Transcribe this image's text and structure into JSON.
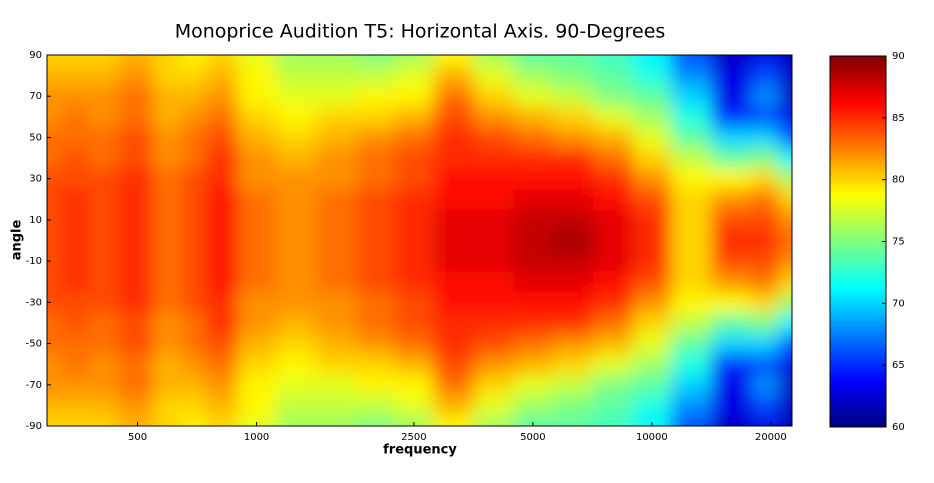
{
  "chart_data": {
    "type": "heatmap",
    "title": "Monoprice Audition T5: Horizontal Axis. 90-Degrees",
    "x_label": "frequency",
    "y_label": "angle",
    "x_scale": "log",
    "xlim": [
      295,
      22620
    ],
    "xticks": [
      500,
      1000,
      2500,
      5000,
      10000,
      20000
    ],
    "ylim": [
      -90,
      90
    ],
    "yticks": [
      -90,
      -70,
      -50,
      -30,
      -10,
      10,
      30,
      50,
      70,
      90
    ],
    "clim": [
      60,
      90
    ],
    "cticks": [
      60,
      65,
      70,
      75,
      80,
      85,
      90
    ],
    "colormap": "jet",
    "x": [
      300,
      350,
      400,
      500,
      600,
      700,
      800,
      1000,
      1250,
      1600,
      2000,
      2500,
      3150,
      4000,
      5000,
      6300,
      8000,
      10000,
      12500,
      16000,
      20000,
      22000
    ],
    "y": [
      90,
      80,
      70,
      60,
      50,
      40,
      30,
      20,
      10,
      0,
      -10,
      -20,
      -30,
      -40,
      -50,
      -60,
      -70,
      -80,
      -90
    ],
    "z": [
      [
        80,
        80,
        80,
        81,
        80,
        79,
        80,
        78,
        76,
        76,
        75,
        76,
        79,
        76,
        74,
        74,
        73,
        71,
        66,
        62,
        63,
        62
      ],
      [
        81,
        81,
        81,
        82,
        80,
        80,
        81,
        79,
        77,
        77,
        77,
        78,
        81,
        78,
        76,
        75,
        74,
        72,
        68,
        63,
        66,
        62
      ],
      [
        82,
        82,
        82,
        83,
        81,
        81,
        82,
        79,
        78,
        78,
        79,
        79,
        83,
        80,
        78,
        77,
        75,
        74,
        70,
        63,
        68,
        62
      ],
      [
        82,
        83,
        82,
        83,
        81,
        82,
        83,
        80,
        79,
        80,
        80,
        81,
        84,
        82,
        81,
        80,
        78,
        76,
        72,
        65,
        66,
        63
      ],
      [
        83,
        83,
        83,
        84,
        82,
        83,
        84,
        81,
        80,
        81,
        82,
        83,
        85,
        84,
        83,
        82,
        81,
        78,
        74,
        70,
        70,
        66
      ],
      [
        83,
        84,
        83,
        84,
        82,
        83,
        85,
        82,
        81,
        82,
        83,
        84,
        85,
        85,
        85,
        85,
        83,
        80,
        77,
        74,
        75,
        71
      ],
      [
        84,
        84,
        84,
        85,
        83,
        84,
        85,
        82,
        82,
        82,
        83,
        84,
        86,
        86,
        86,
        86,
        85,
        82,
        79,
        79,
        80,
        76
      ],
      [
        84,
        85,
        84,
        85,
        83,
        84,
        86,
        83,
        82,
        83,
        84,
        85,
        86,
        86,
        87,
        87,
        86,
        84,
        80,
        82,
        83,
        80
      ],
      [
        84,
        85,
        84,
        85,
        83,
        84,
        86,
        83,
        82,
        83,
        84,
        85,
        87,
        87,
        88,
        88,
        87,
        85,
        80,
        84,
        84,
        82
      ],
      [
        84,
        85,
        84,
        85,
        83,
        84,
        86,
        83,
        82,
        83,
        84,
        85,
        87,
        87,
        88,
        89,
        87,
        85,
        80,
        85,
        85,
        83
      ],
      [
        84,
        85,
        84,
        85,
        83,
        84,
        86,
        83,
        82,
        83,
        84,
        85,
        87,
        87,
        88,
        88,
        87,
        85,
        80,
        84,
        84,
        82
      ],
      [
        84,
        85,
        84,
        85,
        83,
        84,
        86,
        83,
        82,
        83,
        84,
        85,
        86,
        86,
        87,
        87,
        86,
        84,
        80,
        82,
        83,
        80
      ],
      [
        84,
        84,
        84,
        85,
        83,
        84,
        85,
        82,
        82,
        82,
        83,
        84,
        86,
        86,
        86,
        86,
        85,
        82,
        79,
        79,
        80,
        76
      ],
      [
        83,
        84,
        83,
        84,
        82,
        83,
        85,
        82,
        81,
        82,
        83,
        84,
        85,
        85,
        85,
        85,
        83,
        80,
        77,
        74,
        75,
        71
      ],
      [
        83,
        83,
        83,
        84,
        82,
        83,
        84,
        81,
        80,
        81,
        82,
        83,
        85,
        84,
        83,
        82,
        81,
        78,
        74,
        70,
        70,
        66
      ],
      [
        82,
        83,
        82,
        83,
        81,
        82,
        83,
        80,
        79,
        80,
        80,
        81,
        84,
        82,
        81,
        80,
        78,
        76,
        72,
        65,
        66,
        63
      ],
      [
        82,
        82,
        82,
        83,
        81,
        81,
        82,
        79,
        78,
        78,
        79,
        79,
        83,
        80,
        78,
        77,
        75,
        74,
        70,
        63,
        68,
        62
      ],
      [
        81,
        81,
        81,
        82,
        80,
        80,
        81,
        79,
        77,
        77,
        77,
        78,
        81,
        78,
        76,
        75,
        74,
        72,
        68,
        63,
        66,
        62
      ],
      [
        80,
        80,
        80,
        81,
        80,
        79,
        80,
        78,
        76,
        76,
        75,
        76,
        79,
        76,
        74,
        74,
        73,
        71,
        66,
        62,
        63,
        62
      ]
    ]
  }
}
